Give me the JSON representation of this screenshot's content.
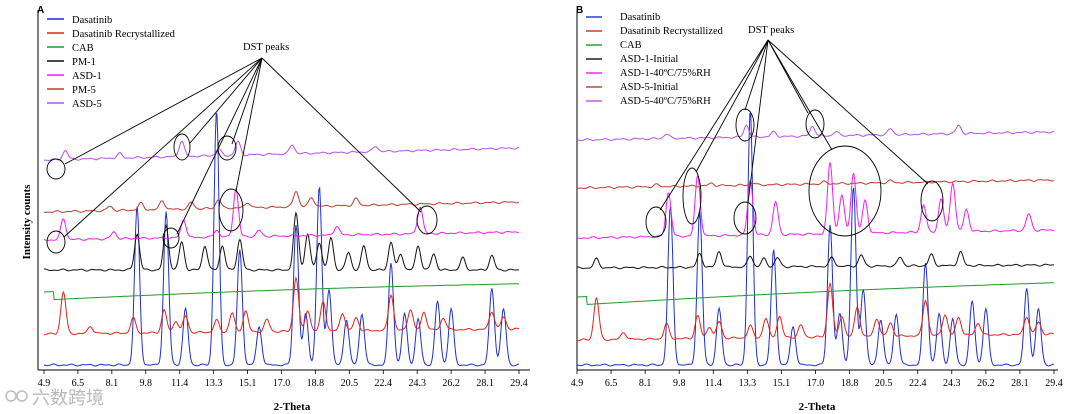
{
  "watermark": "六数跨境",
  "chart_data": [
    {
      "type": "line",
      "panel": "A",
      "xlabel": "2-Theta",
      "ylabel": "Intensity counts",
      "xlim": [
        4.9,
        29.4
      ],
      "x_ticks": [
        "4.9",
        "6.5",
        "8.1",
        "9.8",
        "11.4",
        "13.3",
        "15.1",
        "17.0",
        "18.8",
        "20.5",
        "22.4",
        "24.3",
        "26.2",
        "28.1",
        "29.4"
      ],
      "annotation": "DST peaks",
      "legend_position": "top-left",
      "series": [
        {
          "name": "Dasatinib",
          "color": "#1f2fd0",
          "base": 0.02,
          "amp": 0.8,
          "peaks": [
            [
              9.7,
              0.62
            ],
            [
              11.2,
              0.6
            ],
            [
              12.2,
              0.22
            ],
            [
              13.8,
              1.0
            ],
            [
              15.0,
              0.45
            ],
            [
              16.0,
              0.15
            ],
            [
              17.9,
              0.55
            ],
            [
              18.4,
              0.2
            ],
            [
              19.1,
              0.7
            ],
            [
              19.6,
              0.3
            ],
            [
              20.5,
              0.18
            ],
            [
              21.3,
              0.2
            ],
            [
              22.8,
              0.4
            ],
            [
              23.5,
              0.2
            ],
            [
              24.2,
              0.18
            ],
            [
              25.2,
              0.25
            ],
            [
              25.9,
              0.22
            ],
            [
              28.0,
              0.3
            ],
            [
              28.6,
              0.22
            ]
          ]
        },
        {
          "name": "Dasatinib Recrystallized",
          "color": "#e2231a",
          "base": 0.0,
          "amp": 1.0,
          "peaks": [
            [
              5.9,
              0.7
            ],
            [
              7.3,
              0.12
            ],
            [
              9.5,
              0.25
            ],
            [
              11.1,
              0.38
            ],
            [
              11.7,
              0.2
            ],
            [
              12.2,
              0.28
            ],
            [
              13.8,
              0.2
            ],
            [
              14.6,
              0.32
            ],
            [
              15.3,
              0.35
            ],
            [
              16.4,
              0.2
            ],
            [
              17.9,
              0.9
            ],
            [
              18.5,
              0.35
            ],
            [
              19.3,
              0.5
            ],
            [
              20.3,
              0.3
            ],
            [
              21.0,
              0.22
            ],
            [
              22.8,
              0.6
            ],
            [
              23.8,
              0.35
            ],
            [
              24.5,
              0.3
            ],
            [
              25.5,
              0.2
            ],
            [
              28.0,
              0.3
            ],
            [
              28.6,
              0.2
            ]
          ]
        },
        {
          "name": "CAB",
          "color": "#1c9c2a",
          "base": 0.0,
          "amp": 1.0,
          "peaks": []
        },
        {
          "name": "PM-1",
          "color": "#111111",
          "base": 0.0,
          "amp": 1.0,
          "peaks": [
            [
              9.7,
              0.45
            ],
            [
              11.2,
              0.55
            ],
            [
              12.0,
              0.35
            ],
            [
              13.2,
              0.3
            ],
            [
              14.1,
              0.3
            ],
            [
              15.0,
              0.38
            ],
            [
              17.9,
              0.7
            ],
            [
              18.5,
              0.45
            ],
            [
              19.1,
              0.35
            ],
            [
              19.7,
              0.4
            ],
            [
              20.6,
              0.22
            ],
            [
              21.4,
              0.3
            ],
            [
              22.8,
              0.35
            ],
            [
              23.3,
              0.2
            ],
            [
              24.2,
              0.3
            ],
            [
              25.0,
              0.2
            ],
            [
              26.5,
              0.15
            ],
            [
              28.0,
              0.18
            ]
          ]
        },
        {
          "name": "ASD-1",
          "color": "#ef1ef0",
          "base": 0.0,
          "amp": 1.0,
          "peaks": [
            [
              5.9,
              0.35
            ],
            [
              8.5,
              0.12
            ],
            [
              12.1,
              0.3
            ],
            [
              13.8,
              0.12
            ],
            [
              14.8,
              0.8
            ],
            [
              16.0,
              0.1
            ],
            [
              20.0,
              0.15
            ],
            [
              24.3,
              0.45
            ]
          ]
        },
        {
          "name": "PM-5",
          "color": "#c0392b",
          "base": 0.0,
          "amp": 1.0,
          "peaks": [
            [
              8.3,
              0.1
            ],
            [
              9.9,
              0.15
            ],
            [
              11.0,
              0.2
            ],
            [
              12.5,
              0.15
            ],
            [
              13.9,
              0.2
            ],
            [
              15.4,
              0.12
            ],
            [
              17.9,
              0.35
            ],
            [
              18.7,
              0.2
            ],
            [
              21.0,
              0.15
            ]
          ]
        },
        {
          "name": "ASD-5",
          "color": "#b84fe8",
          "base": 0.0,
          "amp": 1.0,
          "peaks": [
            [
              6.0,
              0.2
            ],
            [
              8.8,
              0.1
            ],
            [
              12.0,
              0.35
            ],
            [
              13.9,
              0.15
            ],
            [
              14.9,
              0.3
            ],
            [
              17.7,
              0.2
            ],
            [
              22.0,
              0.12
            ]
          ]
        }
      ]
    },
    {
      "type": "line",
      "panel": "B",
      "xlabel": "2-Theta",
      "ylabel": "",
      "xlim": [
        4.9,
        29.4
      ],
      "x_ticks": [
        "4.9",
        "6.5",
        "8.1",
        "9.8",
        "11.4",
        "13.3",
        "15.1",
        "17.0",
        "18.8",
        "20.5",
        "22.4",
        "24.3",
        "26.2",
        "28.1",
        "29.4"
      ],
      "annotation": "DST peaks",
      "legend_position": "top-left",
      "series": [
        {
          "name": "Dasatinib",
          "color": "#1f2fd0",
          "base": 0.02,
          "amp": 0.8,
          "peaks": [
            [
              9.7,
              0.62
            ],
            [
              11.2,
              0.6
            ],
            [
              12.2,
              0.22
            ],
            [
              13.8,
              1.0
            ],
            [
              15.0,
              0.45
            ],
            [
              16.0,
              0.15
            ],
            [
              17.9,
              0.55
            ],
            [
              18.4,
              0.2
            ],
            [
              19.1,
              0.7
            ],
            [
              19.6,
              0.3
            ],
            [
              20.5,
              0.18
            ],
            [
              21.3,
              0.2
            ],
            [
              22.8,
              0.4
            ],
            [
              23.5,
              0.2
            ],
            [
              24.2,
              0.18
            ],
            [
              25.2,
              0.25
            ],
            [
              25.9,
              0.22
            ],
            [
              28.0,
              0.3
            ],
            [
              28.6,
              0.22
            ]
          ]
        },
        {
          "name": "Dasatinib Recrystallized",
          "color": "#e2231a",
          "base": 0.0,
          "amp": 1.0,
          "peaks": [
            [
              5.9,
              0.7
            ],
            [
              7.3,
              0.12
            ],
            [
              9.5,
              0.25
            ],
            [
              11.1,
              0.38
            ],
            [
              11.7,
              0.2
            ],
            [
              12.2,
              0.28
            ],
            [
              13.8,
              0.2
            ],
            [
              14.6,
              0.32
            ],
            [
              15.3,
              0.35
            ],
            [
              16.4,
              0.2
            ],
            [
              17.9,
              0.9
            ],
            [
              18.5,
              0.35
            ],
            [
              19.3,
              0.5
            ],
            [
              20.3,
              0.3
            ],
            [
              21.0,
              0.22
            ],
            [
              22.8,
              0.6
            ],
            [
              23.8,
              0.35
            ],
            [
              24.5,
              0.3
            ],
            [
              25.5,
              0.2
            ],
            [
              28.0,
              0.3
            ],
            [
              28.6,
              0.2
            ]
          ]
        },
        {
          "name": "CAB",
          "color": "#1c9c2a",
          "base": 0.0,
          "amp": 1.0,
          "peaks": []
        },
        {
          "name": "ASD-1-Initial",
          "color": "#111111",
          "base": 0.0,
          "amp": 1.0,
          "peaks": [
            [
              5.9,
              0.2
            ],
            [
              11.2,
              0.3
            ],
            [
              12.2,
              0.35
            ],
            [
              13.8,
              0.25
            ],
            [
              14.5,
              0.18
            ],
            [
              15.2,
              0.2
            ],
            [
              18.0,
              0.2
            ],
            [
              19.5,
              0.25
            ],
            [
              21.5,
              0.2
            ],
            [
              23.1,
              0.25
            ],
            [
              24.6,
              0.3
            ]
          ]
        },
        {
          "name": "ASD-1-40ºC/75%RH",
          "color": "#ef1ef0",
          "base": 0.0,
          "amp": 1.0,
          "peaks": [
            [
              9.6,
              0.4
            ],
            [
              11.1,
              0.55
            ],
            [
              13.8,
              0.5
            ],
            [
              15.1,
              0.3
            ],
            [
              17.9,
              0.65
            ],
            [
              18.5,
              0.35
            ],
            [
              19.1,
              0.55
            ],
            [
              19.7,
              0.3
            ],
            [
              22.7,
              0.25
            ],
            [
              23.6,
              0.3
            ],
            [
              24.2,
              0.45
            ],
            [
              24.9,
              0.2
            ],
            [
              28.1,
              0.15
            ]
          ]
        },
        {
          "name": "ASD-5-Initial",
          "color": "#c0392b",
          "base": 0.0,
          "amp": 1.0,
          "peaks": [
            [
              9.0,
              0.1
            ],
            [
              11.8,
              0.12
            ],
            [
              13.9,
              0.12
            ],
            [
              17.6,
              0.1
            ],
            [
              21.0,
              0.1
            ]
          ]
        },
        {
          "name": "ASD-5-40ºC/75%RH",
          "color": "#b84fe8",
          "base": 0.0,
          "amp": 1.0,
          "peaks": [
            [
              9.5,
              0.12
            ],
            [
              13.6,
              0.3
            ],
            [
              15.0,
              0.12
            ],
            [
              17.0,
              0.25
            ],
            [
              18.2,
              0.1
            ],
            [
              21.0,
              0.15
            ],
            [
              24.5,
              0.2
            ]
          ]
        }
      ]
    }
  ]
}
